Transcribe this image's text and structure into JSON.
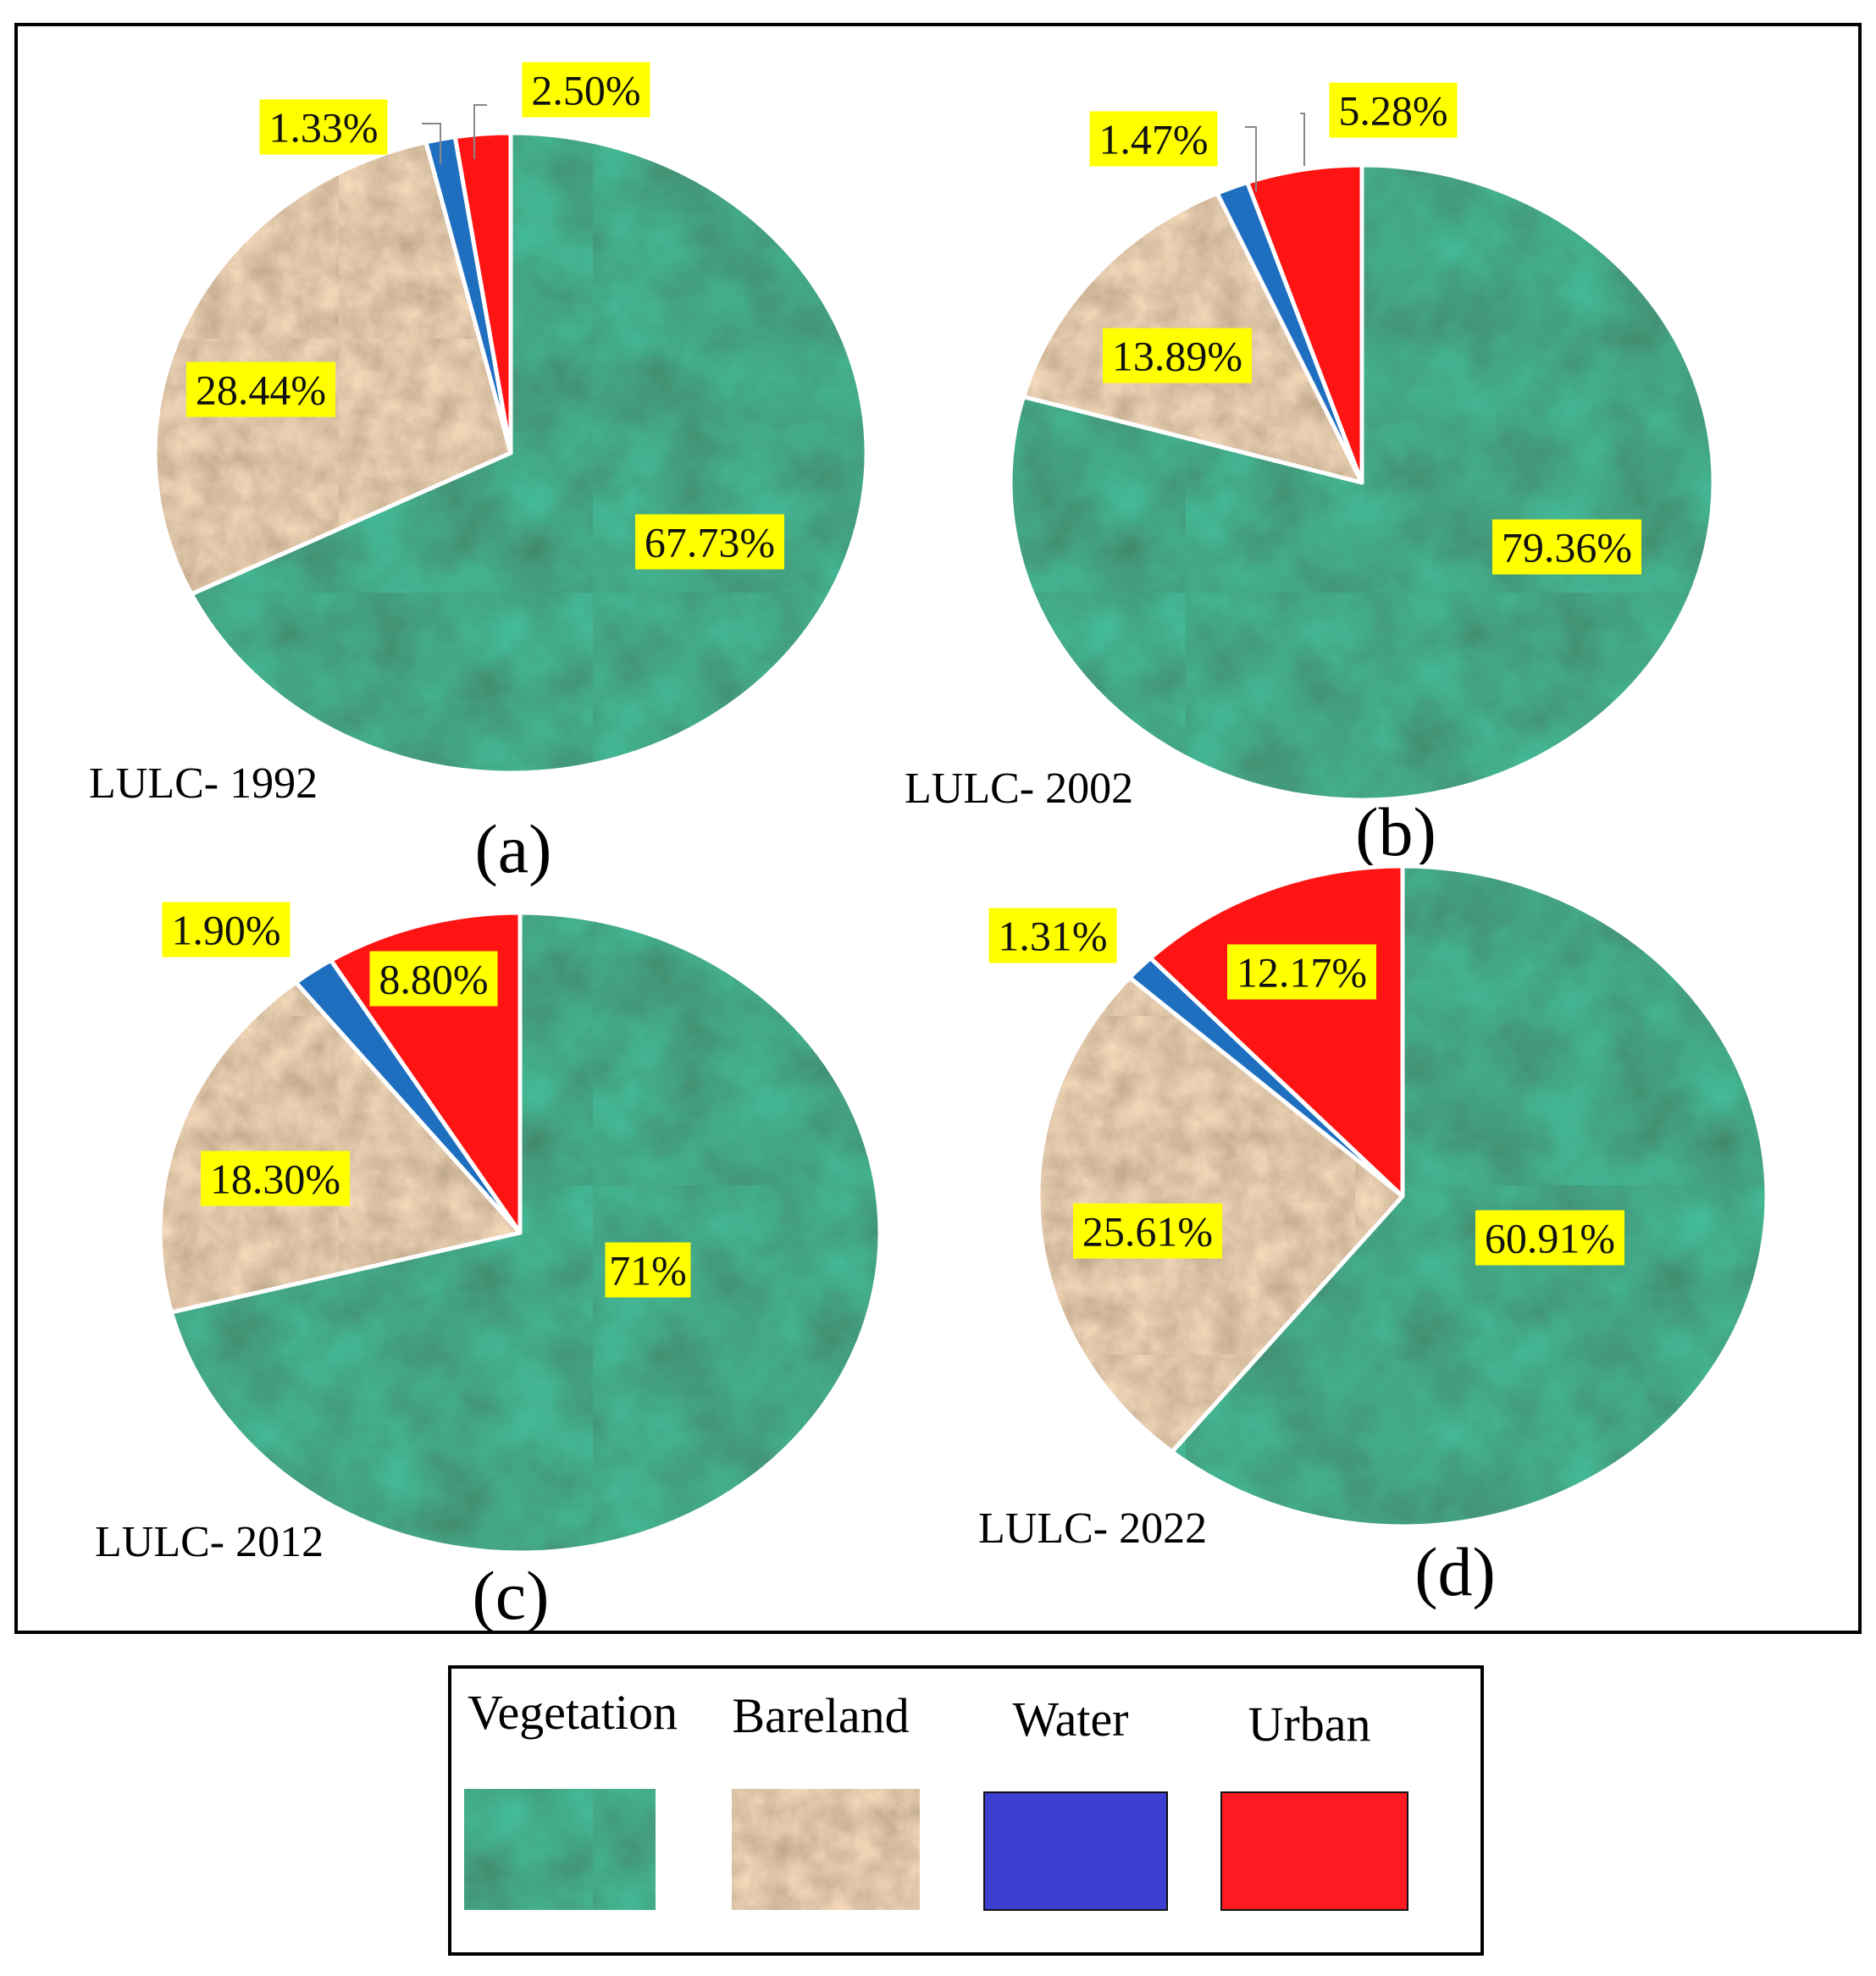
{
  "colors": {
    "vegetation": "#145c35",
    "bareland": "#c19a72",
    "water": "#1f6fc0",
    "urban": "#ff1414",
    "label_bg": "#ffff00",
    "legend_water": "#3c3fd0",
    "legend_urban": "#ff1a22"
  },
  "chart_data": [
    {
      "type": "pie",
      "panel": "(a)",
      "caption": "LULC- 1992",
      "categories": [
        "Vegetation",
        "Bareland",
        "Water",
        "Urban"
      ],
      "values": [
        67.73,
        28.44,
        1.33,
        2.5
      ],
      "labels": [
        "67.73%",
        "28.44%",
        "1.33%",
        "2.50%"
      ]
    },
    {
      "type": "pie",
      "panel": "(b)",
      "caption": "LULC- 2002",
      "categories": [
        "Vegetation",
        "Bareland",
        "Water",
        "Urban"
      ],
      "values": [
        79.36,
        13.89,
        1.47,
        5.28
      ],
      "labels": [
        "79.36%",
        "13.89%",
        "1.47%",
        "5.28%"
      ]
    },
    {
      "type": "pie",
      "panel": "(c)",
      "caption": "LULC- 2012",
      "categories": [
        "Vegetation",
        "Bareland",
        "Water",
        "Urban"
      ],
      "values": [
        71,
        18.3,
        1.9,
        8.8
      ],
      "labels": [
        "71%",
        "18.30%",
        "1.90%",
        "8.80%"
      ]
    },
    {
      "type": "pie",
      "panel": "(d)",
      "caption": "LULC- 2022",
      "categories": [
        "Vegetation",
        "Bareland",
        "Water",
        "Urban"
      ],
      "values": [
        60.91,
        25.61,
        1.31,
        12.17
      ],
      "labels": [
        "60.91%",
        "25.61%",
        "1.31%",
        "12.17%"
      ]
    }
  ],
  "legend": {
    "items": [
      "Vegetation",
      "Bareland",
      "Water",
      "Urban"
    ]
  }
}
